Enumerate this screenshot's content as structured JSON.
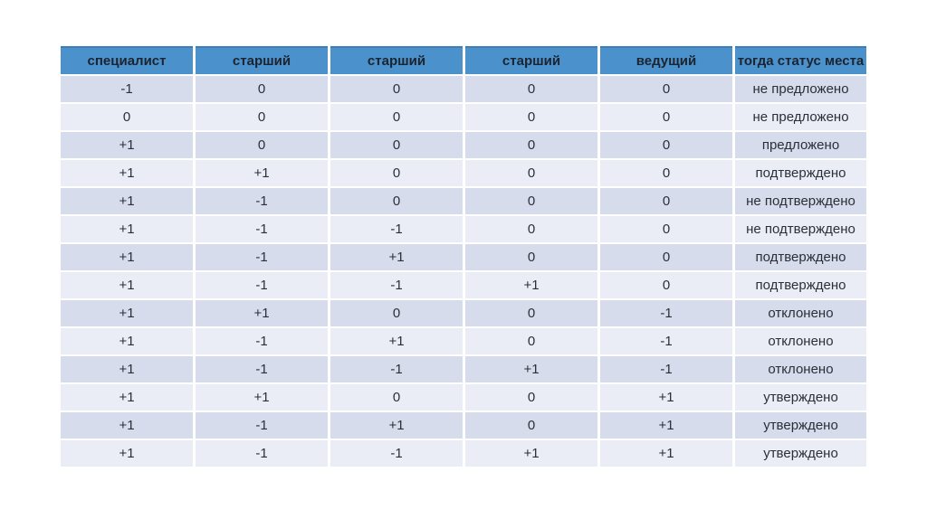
{
  "slide": {
    "background": "#ffffff"
  },
  "table": {
    "columns": [
      "специалист",
      "старший",
      "старший",
      "старший",
      "ведущий",
      "тогда статус места"
    ],
    "rows": [
      [
        "-1",
        "0",
        "0",
        "0",
        "0",
        "не предложено"
      ],
      [
        "0",
        "0",
        "0",
        "0",
        "0",
        "не предложено"
      ],
      [
        "+1",
        "0",
        "0",
        "0",
        "0",
        "предложено"
      ],
      [
        "+1",
        "+1",
        "0",
        "0",
        "0",
        "подтверждено"
      ],
      [
        "+1",
        "-1",
        "0",
        "0",
        "0",
        "не подтверждено"
      ],
      [
        "+1",
        "-1",
        "-1",
        "0",
        "0",
        "не подтверждено"
      ],
      [
        "+1",
        "-1",
        "+1",
        "0",
        "0",
        "подтверждено"
      ],
      [
        "+1",
        "-1",
        "-1",
        "+1",
        "0",
        "подтверждено"
      ],
      [
        "+1",
        "+1",
        "0",
        "0",
        "-1",
        "отклонено"
      ],
      [
        "+1",
        "-1",
        "+1",
        "0",
        "-1",
        "отклонено"
      ],
      [
        "+1",
        "-1",
        "-1",
        "+1",
        "-1",
        "отклонено"
      ],
      [
        "+1",
        "+1",
        "0",
        "0",
        "+1",
        "утверждено"
      ],
      [
        "+1",
        "-1",
        "+1",
        "0",
        "+1",
        "утверждено"
      ],
      [
        "+1",
        "-1",
        "-1",
        "+1",
        "+1",
        "утверждено"
      ]
    ],
    "colors": {
      "header_bg": "#4b91cb",
      "header_border_top": "#3f7fb6",
      "header_text": "#1b2430",
      "row_odd_bg": "#d6dceb",
      "row_even_bg": "#eaedf6",
      "cell_text": "#2b2f38",
      "grid_gap": "#ffffff"
    }
  }
}
